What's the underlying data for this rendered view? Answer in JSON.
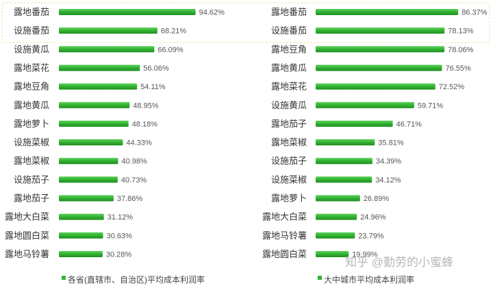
{
  "chart_data": [
    {
      "type": "bar",
      "orientation": "horizontal",
      "categories": [
        "露地番茄",
        "设施番茄",
        "设施黄瓜",
        "露地菜花",
        "露地豆角",
        "露地黄瓜",
        "露地萝卜",
        "设施菜椒",
        "露地菜椒",
        "设施茄子",
        "露地茄子",
        "露地大白菜",
        "露地圆白菜",
        "露地马铃薯"
      ],
      "values": [
        94.62,
        68.21,
        66.09,
        56.06,
        54.11,
        48.95,
        48.18,
        44.33,
        40.98,
        40.73,
        37.86,
        31.12,
        30.63,
        30.28
      ],
      "value_labels": [
        "94.62%",
        "68.21%",
        "66.09%",
        "56.06%",
        "54.11%",
        "48.95%",
        "48.18%",
        "44.33%",
        "40.98%",
        "40.73%",
        "37.86%",
        "31.12%",
        "30.63%",
        "30.28%"
      ],
      "unit": "%",
      "series": [
        {
          "name": "各省(直辖市、自治区)平均成本利润率"
        }
      ],
      "legend_position": "bottom-left",
      "bar_color": "#36b336",
      "grid": false
    },
    {
      "type": "bar",
      "orientation": "horizontal",
      "categories": [
        "露地番茄",
        "设施番茄",
        "露地豆角",
        "露地黄瓜",
        "露地菜花",
        "设施黄瓜",
        "露地茄子",
        "露地菜椒",
        "设施茄子",
        "设施菜椒",
        "露地萝卜",
        "露地大白菜",
        "露地马铃薯",
        "露地圆白菜"
      ],
      "values": [
        86.37,
        78.13,
        78.06,
        76.55,
        72.52,
        59.71,
        46.71,
        35.81,
        34.39,
        34.12,
        26.89,
        24.96,
        23.79,
        19.99
      ],
      "value_labels": [
        "86.37%",
        "78.13%",
        "78.06%",
        "76.55%",
        "72.52%",
        "59.71%",
        "46.71%",
        "35.81%",
        "34.39%",
        "34.12%",
        "26.89%",
        "24.96%",
        "23.79%",
        "19.99%"
      ],
      "unit": "%",
      "series": [
        {
          "name": "大中城市平均成本利润率"
        }
      ],
      "legend_position": "bottom-left",
      "bar_color": "#36b336",
      "grid": false
    }
  ],
  "watermark": "知乎 @勤劳的小蜜蜂",
  "highlight_box_color": "#e6e6a8"
}
